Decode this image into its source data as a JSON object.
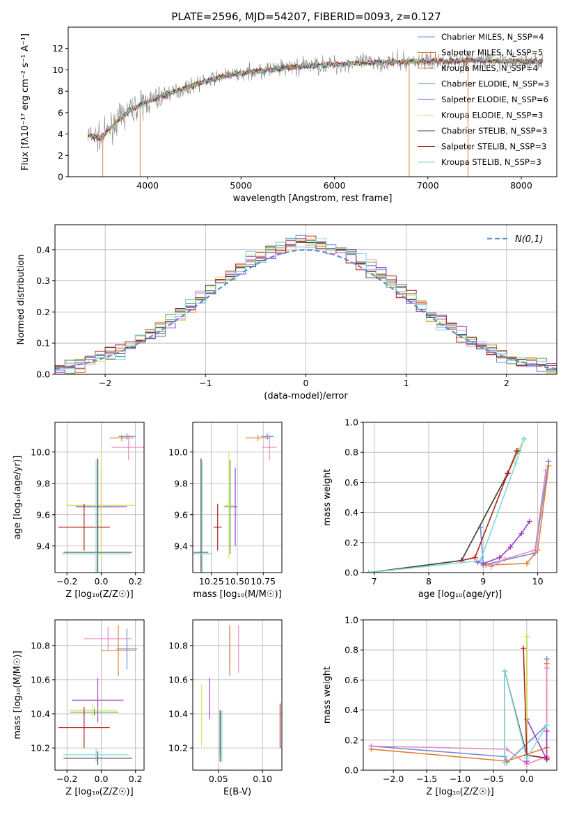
{
  "figure": {
    "spectrum_title": "PLATE=2596, MJD=54207, FIBERID=0093, z=0.127"
  },
  "chart_data": [
    {
      "id": "spectrum",
      "type": "line",
      "title": "PLATE=2596, MJD=54207, FIBERID=0093, z=0.127",
      "xlabel": "wavelength [Angstrom, rest frame]",
      "ylabel": "Flux [fλ10⁻¹⁷ erg cm⁻² s⁻¹ A⁻¹]",
      "xlim": [
        3150,
        8380
      ],
      "ylim": [
        0,
        14
      ],
      "xticks": [
        4000,
        5000,
        6000,
        7000,
        8000
      ],
      "yticks": [
        0,
        2,
        4,
        6,
        8,
        10,
        12
      ],
      "grid": false,
      "legend_position": "upper-right",
      "observed_color": "#808080",
      "continuum": {
        "x": [
          3350,
          3500,
          3650,
          3800,
          4000,
          4200,
          4500,
          4800,
          5100,
          5400,
          5700,
          6000,
          6300,
          6600,
          6900,
          7200,
          7500,
          7800,
          8200
        ],
        "y": [
          3.9,
          3.6,
          5.0,
          6.2,
          7.0,
          7.7,
          8.6,
          9.4,
          9.8,
          10.1,
          10.4,
          10.5,
          10.7,
          10.7,
          10.8,
          10.8,
          10.9,
          10.8,
          10.8
        ]
      },
      "series": [
        {
          "name": "Chabrier MILES, N_SSP=4",
          "color": "#6b8fd6"
        },
        {
          "name": "Salpeter MILES, N_SSP=5",
          "color": "#e47d2d"
        },
        {
          "name": "Kroupa MILES, N_SSP=4",
          "color": "#c98e36"
        },
        {
          "name": "Chabrier ELODIE, N_SSP=3",
          "color": "#4f9a4f"
        },
        {
          "name": "Salpeter ELODIE, N_SSP=6",
          "color": "#9a3fc0"
        },
        {
          "name": "Kroupa ELODIE, N_SSP=3",
          "color": "#d6e25a"
        },
        {
          "name": "Chabrier STELIB, N_SSP=3",
          "color": "#404040"
        },
        {
          "name": "Salpeter STELIB, N_SSP=3",
          "color": "#b51d1d"
        },
        {
          "name": "Kroupa STELIB, N_SSP=3",
          "color": "#82d6dc"
        }
      ]
    },
    {
      "id": "residuals",
      "type": "line",
      "xlabel": "(data-model)/error",
      "ylabel": "Normed distribution",
      "xlim": [
        -2.5,
        2.5
      ],
      "ylim": [
        0,
        0.48
      ],
      "xticks": [
        -2,
        -1,
        0,
        1,
        2
      ],
      "yticks": [
        0.0,
        0.1,
        0.2,
        0.3,
        0.4
      ],
      "grid": true,
      "legend_position": "upper-right",
      "legend": "N(0,1)",
      "normal_color": "#5b8bd0",
      "colors": [
        "#6b8fd6",
        "#e47d2d",
        "#ea88c0",
        "#4f9a4f",
        "#9a3fc0",
        "#d6e25a",
        "#404040",
        "#b51d1d",
        "#82d6dc"
      ]
    },
    {
      "id": "age-metallicity",
      "type": "scatter",
      "xlabel": "Z [log₁₀(Z/Z☉)]",
      "ylabel": "age  [log₁₀(age/yr)]",
      "xlim": [
        -0.27,
        0.25
      ],
      "ylim": [
        9.23,
        10.19
      ],
      "xticks": [
        -0.2,
        0.0,
        0.2
      ],
      "yticks": [
        9.4,
        9.6,
        9.8,
        10.0
      ],
      "grid": true,
      "points": [
        {
          "x": 0.15,
          "y": 10.1,
          "xerr": 0.05,
          "yerr": 0.02,
          "color": "#6b8fd6"
        },
        {
          "x": 0.12,
          "y": 10.09,
          "xerr": 0.07,
          "yerr": 0.02,
          "color": "#e47d2d"
        },
        {
          "x": 0.16,
          "y": 10.03,
          "xerr": 0.1,
          "yerr": 0.08,
          "color": "#ea88c0"
        },
        {
          "x": -0.02,
          "y": 9.65,
          "xerr": 0.12,
          "yerr": 0.3,
          "color": "#4f9a4f"
        },
        {
          "x": 0.0,
          "y": 9.65,
          "xerr": 0.15,
          "yerr": 0.25,
          "color": "#9a3fc0"
        },
        {
          "x": 0.0,
          "y": 9.66,
          "xerr": 0.2,
          "yerr": 0.34,
          "color": "#d6e25a"
        },
        {
          "x": -0.02,
          "y": 9.36,
          "xerr": 0.2,
          "yerr": 0.6,
          "color": "#404040"
        },
        {
          "x": -0.1,
          "y": 9.52,
          "xerr": 0.15,
          "yerr": 0.15,
          "color": "#b51d1d"
        },
        {
          "x": -0.03,
          "y": 9.35,
          "xerr": 0.2,
          "yerr": 0.6,
          "color": "#82d6dc"
        }
      ]
    },
    {
      "id": "age-mass",
      "type": "scatter",
      "xlabel": "mass [log₁₀(M/M☉)]",
      "xlim": [
        10.07,
        10.93
      ],
      "ylim": [
        9.23,
        10.19
      ],
      "xticks": [
        10.25,
        10.5,
        10.75
      ],
      "yticks": [
        9.4,
        9.6,
        9.8,
        10.0
      ],
      "grid": true,
      "points": [
        {
          "x": 10.79,
          "y": 10.1,
          "xerr": 0.06,
          "yerr": 0.02,
          "color": "#6b8fd6"
        },
        {
          "x": 10.7,
          "y": 10.09,
          "xerr": 0.12,
          "yerr": 0.02,
          "color": "#e47d2d"
        },
        {
          "x": 10.81,
          "y": 10.03,
          "xerr": 0.07,
          "yerr": 0.08,
          "color": "#ea88c0"
        },
        {
          "x": 10.43,
          "y": 9.65,
          "xerr": 0.06,
          "yerr": 0.3,
          "color": "#4f9a4f"
        },
        {
          "x": 10.48,
          "y": 9.65,
          "xerr": 0.02,
          "yerr": 0.25,
          "color": "#9a3fc0"
        },
        {
          "x": 10.42,
          "y": 9.66,
          "xerr": 0.04,
          "yerr": 0.34,
          "color": "#d6e25a"
        },
        {
          "x": 10.15,
          "y": 9.36,
          "xerr": 0.07,
          "yerr": 0.6,
          "color": "#404040"
        },
        {
          "x": 10.31,
          "y": 9.52,
          "xerr": 0.04,
          "yerr": 0.15,
          "color": "#b51d1d"
        },
        {
          "x": 10.16,
          "y": 9.35,
          "xerr": 0.1,
          "yerr": 0.6,
          "color": "#82d6dc"
        }
      ]
    },
    {
      "id": "mass-weight-vs-age",
      "type": "line",
      "xlabel": "age  [log₁₀(age/yr)]",
      "ylabel": "mass weight",
      "xlim": [
        6.8,
        10.35
      ],
      "ylim": [
        0,
        1
      ],
      "xticks": [
        7,
        8,
        9,
        10
      ],
      "yticks": [
        0.0,
        0.2,
        0.4,
        0.6,
        0.8,
        1.0
      ],
      "grid": true,
      "series": [
        {
          "color": "#6b8fd6",
          "x": [
            8.95,
            9.0,
            9.95,
            10.2
          ],
          "y": [
            0.3,
            0.05,
            0.13,
            0.74
          ]
        },
        {
          "color": "#e47d2d",
          "x": [
            9.05,
            9.8,
            10.0,
            10.2
          ],
          "y": [
            0.05,
            0.06,
            0.15,
            0.71
          ]
        },
        {
          "color": "#ea88c0",
          "x": [
            9.15,
            9.4,
            9.95,
            10.15
          ],
          "y": [
            0.04,
            0.09,
            0.15,
            0.68
          ]
        },
        {
          "color": "#4f9a4f",
          "x": [
            6.9,
            8.6,
            9.45,
            9.65
          ],
          "y": [
            0.0,
            0.08,
            0.66,
            0.81
          ]
        },
        {
          "color": "#9a3fc0",
          "x": [
            8.9,
            9.0,
            9.3,
            9.5,
            9.7,
            9.85
          ],
          "y": [
            0.07,
            0.06,
            0.1,
            0.17,
            0.26,
            0.34
          ]
        },
        {
          "color": "#d6e25a",
          "x": [
            6.9,
            8.6,
            9.45,
            9.75
          ],
          "y": [
            0.0,
            0.08,
            0.66,
            0.89
          ]
        },
        {
          "color": "#404040",
          "x": [
            6.9,
            8.6,
            9.45,
            9.62
          ],
          "y": [
            0.0,
            0.08,
            0.66,
            0.81
          ]
        },
        {
          "color": "#b51d1d",
          "x": [
            8.6,
            8.85,
            9.45,
            9.62
          ],
          "y": [
            0.08,
            0.1,
            0.66,
            0.81
          ]
        },
        {
          "color": "#82d6dc",
          "x": [
            6.9,
            8.95,
            9.6,
            9.75
          ],
          "y": [
            0.0,
            0.08,
            0.73,
            0.89
          ]
        }
      ]
    },
    {
      "id": "mass-metallicity",
      "type": "scatter",
      "xlabel": "Z [log₁₀(Z/Z☉)]",
      "ylabel": "mass [log₁₀(M/M☉)]",
      "xlim": [
        -0.27,
        0.25
      ],
      "ylim": [
        10.07,
        10.95
      ],
      "xticks": [
        -0.2,
        0.0,
        0.2
      ],
      "yticks": [
        10.2,
        10.4,
        10.6,
        10.8
      ],
      "grid": true,
      "points": [
        {
          "x": 0.15,
          "y": 10.78,
          "xerr": 0.06,
          "yerr": 0.12,
          "color": "#6b8fd6"
        },
        {
          "x": 0.1,
          "y": 10.77,
          "xerr": 0.1,
          "yerr": 0.15,
          "color": "#e47d2d"
        },
        {
          "x": 0.04,
          "y": 10.84,
          "xerr": 0.14,
          "yerr": 0.07,
          "color": "#ea88c0"
        },
        {
          "x": -0.04,
          "y": 10.41,
          "xerr": 0.14,
          "yerr": 0.02,
          "color": "#4f9a4f"
        },
        {
          "x": -0.02,
          "y": 10.48,
          "xerr": 0.15,
          "yerr": 0.13,
          "color": "#9a3fc0"
        },
        {
          "x": -0.05,
          "y": 10.42,
          "xerr": 0.14,
          "yerr": 0.04,
          "color": "#d6e25a"
        },
        {
          "x": -0.02,
          "y": 10.14,
          "xerr": 0.2,
          "yerr": 0.04,
          "color": "#404040"
        },
        {
          "x": -0.1,
          "y": 10.32,
          "xerr": 0.15,
          "yerr": 0.12,
          "color": "#b51d1d"
        },
        {
          "x": -0.03,
          "y": 10.16,
          "xerr": 0.19,
          "yerr": 0.04,
          "color": "#82d6dc"
        }
      ]
    },
    {
      "id": "mass-extinction",
      "type": "scatter",
      "xlabel": "E(B-V)",
      "xlim": [
        0.021,
        0.122
      ],
      "ylim": [
        10.07,
        10.95
      ],
      "xticks": [
        0.05,
        0.1
      ],
      "yticks": [
        10.2,
        10.4,
        10.6,
        10.8
      ],
      "grid": true,
      "points": [
        {
          "x": 0.063,
          "y": 10.78,
          "yerr": 0.13,
          "color": "#6b8fd6"
        },
        {
          "x": 0.063,
          "y": 10.77,
          "yerr": 0.15,
          "color": "#e47d2d"
        },
        {
          "x": 0.073,
          "y": 10.78,
          "yerr": 0.14,
          "color": "#ea88c0"
        },
        {
          "x": 0.052,
          "y": 10.29,
          "yerr": 0.13,
          "color": "#4f9a4f"
        },
        {
          "x": 0.04,
          "y": 10.49,
          "yerr": 0.12,
          "color": "#9a3fc0"
        },
        {
          "x": 0.031,
          "y": 10.39,
          "yerr": 0.18,
          "color": "#d6e25a"
        },
        {
          "x": 0.052,
          "y": 10.27,
          "yerr": 0.15,
          "color": "#404040"
        },
        {
          "x": 0.12,
          "y": 10.33,
          "yerr": 0.13,
          "color": "#b51d1d"
        },
        {
          "x": 0.054,
          "y": 10.27,
          "yerr": 0.15,
          "color": "#82d6dc"
        }
      ]
    },
    {
      "id": "mass-weight-vs-metallicity",
      "type": "line",
      "xlabel": "Z [log₁₀(Z/Z☉)]",
      "ylabel": "mass weight",
      "xlim": [
        -2.45,
        0.45
      ],
      "ylim": [
        0,
        1
      ],
      "xticks": [
        -2.0,
        -1.5,
        -1.0,
        -0.5,
        0.0
      ],
      "yticks": [
        0.0,
        0.2,
        0.4,
        0.6,
        0.8,
        1.0
      ],
      "grid": true,
      "series": [
        {
          "color": "#6b8fd6",
          "x": [
            -2.33,
            -0.33,
            -0.3,
            0.3,
            0.3
          ],
          "y": [
            0.16,
            0.09,
            0.05,
            0.3,
            0.74
          ]
        },
        {
          "color": "#e47d2d",
          "x": [
            -2.33,
            -0.3,
            0.3,
            0.3
          ],
          "y": [
            0.14,
            0.06,
            0.15,
            0.71
          ]
        },
        {
          "color": "#ea88c0",
          "x": [
            -2.33,
            -0.3,
            0.0,
            0.3,
            0.3
          ],
          "y": [
            0.16,
            0.14,
            0.04,
            0.09,
            0.68
          ]
        },
        {
          "color": "#4f9a4f",
          "x": [
            -0.33,
            -0.33,
            0.0,
            0.0
          ],
          "y": [
            0.05,
            0.66,
            0.08,
            0.89
          ]
        },
        {
          "color": "#9a3fc0",
          "x": [
            0.0,
            0.0,
            0.3,
            0.3
          ],
          "y": [
            0.06,
            0.34,
            0.07,
            0.26
          ]
        },
        {
          "color": "#d6e25a",
          "x": [
            -0.33,
            -0.33,
            0.0,
            0.0
          ],
          "y": [
            0.05,
            0.66,
            0.08,
            0.89
          ]
        },
        {
          "color": "#404040",
          "x": [
            -0.33,
            -0.33,
            0.0,
            0.3
          ],
          "y": [
            0.05,
            0.66,
            0.1,
            0.08
          ]
        },
        {
          "color": "#b51d1d",
          "x": [
            -0.05,
            0.0,
            0.3
          ],
          "y": [
            0.81,
            0.1,
            0.08
          ]
        },
        {
          "color": "#82d6dc",
          "x": [
            -0.33,
            -0.33,
            0.0,
            0.3
          ],
          "y": [
            0.05,
            0.66,
            0.08,
            0.3
          ]
        }
      ]
    }
  ]
}
